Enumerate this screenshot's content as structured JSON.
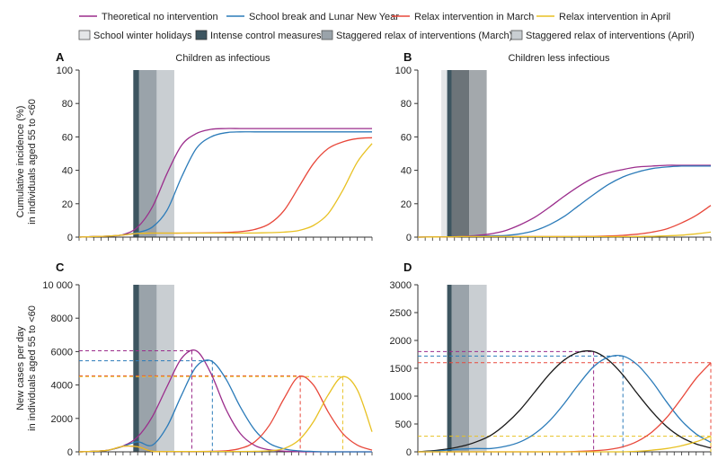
{
  "legend": {
    "lines": [
      {
        "label": "Theoretical no intervention",
        "color": "#9b2d8c"
      },
      {
        "label": "School break and Lunar New Year",
        "color": "#2b7bb9"
      },
      {
        "label": "Relax intervention in March",
        "color": "#e8483b"
      },
      {
        "label": "Relax intervention in April",
        "color": "#e8c123"
      }
    ],
    "boxes": [
      {
        "label": "School winter holidays",
        "color": "#e4e6e8"
      },
      {
        "label": "Intense control measures",
        "color": "#3d5560"
      },
      {
        "label": "Staggered relax of interventions (March)",
        "color": "#9aa3aa"
      },
      {
        "label": "Staggered relax of interventions (April)",
        "color": "#c9ced2"
      }
    ]
  },
  "ylabels": {
    "top": [
      "Cumulative incidence (%)",
      "in individuals aged 55 to <60"
    ],
    "bottom": [
      "New cases per day",
      "in individuals aged 55 to <60"
    ]
  },
  "chart_data": [
    {
      "panel": "A",
      "type": "line",
      "title": "Children as infectious",
      "ylim": [
        0,
        100
      ],
      "yticks": [
        0,
        20,
        40,
        60,
        80,
        100
      ],
      "x": [
        0,
        5,
        10,
        15,
        20,
        25,
        30,
        35,
        40,
        45,
        50,
        55,
        60,
        65,
        70,
        75,
        80,
        85,
        90,
        95,
        100
      ],
      "series": [
        {
          "name": "Theoretical no intervention",
          "color": "#9b2d8c",
          "values": [
            0,
            0.3,
            0.6,
            1.5,
            6,
            18,
            38,
            55,
            62,
            64.5,
            65,
            65,
            65,
            65,
            65,
            65,
            65,
            65,
            65,
            65,
            65
          ]
        },
        {
          "name": "School break and Lunar New Year",
          "color": "#2b7bb9",
          "values": [
            0,
            0.3,
            0.6,
            1.3,
            2.8,
            6,
            16,
            36,
            53,
            60,
            62.5,
            63,
            63,
            63,
            63,
            63,
            63,
            63,
            63,
            63,
            63
          ]
        },
        {
          "name": "Relax intervention in March",
          "color": "#e8483b",
          "values": [
            0,
            0.3,
            0.6,
            1.3,
            2.2,
            2.4,
            2.4,
            2.4,
            2.5,
            2.6,
            2.8,
            3.3,
            4.6,
            8,
            16,
            30,
            44,
            53,
            57,
            59,
            59.5
          ]
        },
        {
          "name": "Relax intervention in April",
          "color": "#e8c123",
          "values": [
            0,
            0.3,
            0.6,
            1.3,
            2.2,
            2.4,
            2.4,
            2.4,
            2.4,
            2.4,
            2.4,
            2.4,
            2.5,
            2.7,
            3,
            4,
            7,
            14,
            28,
            45,
            56
          ]
        }
      ]
    },
    {
      "panel": "B",
      "type": "line",
      "title": "Children less infectious",
      "ylim": [
        0,
        100
      ],
      "yticks": [
        0,
        20,
        40,
        60,
        80,
        100
      ],
      "x": [
        0,
        5,
        10,
        15,
        20,
        25,
        30,
        35,
        40,
        45,
        50,
        55,
        60,
        65,
        70,
        75,
        80,
        85,
        90,
        95,
        100
      ],
      "series": [
        {
          "name": "Theoretical no intervention",
          "color": "#9b2d8c",
          "values": [
            0,
            0.1,
            0.2,
            0.5,
            1,
            2,
            4,
            7.5,
            12,
            18,
            24.5,
            30.5,
            35.5,
            38.5,
            40.5,
            42,
            42.5,
            43,
            43,
            43,
            43
          ]
        },
        {
          "name": "School break and Lunar New Year",
          "color": "#2b7bb9",
          "values": [
            0,
            0.1,
            0.2,
            0.4,
            0.6,
            0.8,
            1,
            2,
            4,
            7.5,
            12.5,
            19,
            25.5,
            31.5,
            36,
            39,
            41,
            42,
            42.5,
            42.5,
            42.5
          ]
        },
        {
          "name": "Relax intervention in March",
          "color": "#e8483b",
          "values": [
            0,
            0.1,
            0.2,
            0.3,
            0.3,
            0.3,
            0.3,
            0.3,
            0.3,
            0.3,
            0.3,
            0.4,
            0.5,
            0.7,
            1.1,
            1.8,
            3,
            5,
            8.5,
            13,
            19
          ]
        },
        {
          "name": "Relax intervention in April",
          "color": "#e8c123",
          "values": [
            0,
            0.1,
            0.2,
            0.3,
            0.3,
            0.3,
            0.3,
            0.3,
            0.3,
            0.3,
            0.3,
            0.3,
            0.3,
            0.3,
            0.3,
            0.4,
            0.5,
            0.8,
            1.2,
            2,
            3
          ]
        }
      ]
    },
    {
      "panel": "C",
      "type": "line",
      "title": "",
      "ylim": [
        0,
        10000
      ],
      "yticks": [
        0,
        2000,
        4000,
        6000,
        8000,
        10000
      ],
      "x": [
        0,
        5,
        10,
        15,
        20,
        25,
        30,
        35,
        40,
        45,
        50,
        55,
        60,
        65,
        70,
        75,
        80,
        85,
        90,
        95,
        100
      ],
      "series": [
        {
          "name": "Theoretical no intervention",
          "color": "#9b2d8c",
          "values": [
            0,
            30,
            100,
            350,
            900,
            2100,
            3900,
            5600,
            6050,
            4700,
            2600,
            1100,
            380,
            120,
            40,
            10,
            0,
            0,
            0,
            0,
            0
          ]
        },
        {
          "name": "School break and Lunar New Year",
          "color": "#2b7bb9",
          "values": [
            0,
            30,
            100,
            330,
            600,
            400,
            1500,
            3400,
            5100,
            5450,
            4400,
            2700,
            1300,
            500,
            180,
            60,
            20,
            0,
            0,
            0,
            0
          ]
        },
        {
          "name": "Relax intervention in March",
          "color": "#e8483b",
          "values": [
            0,
            30,
            100,
            330,
            300,
            30,
            20,
            20,
            20,
            30,
            60,
            200,
            600,
            1600,
            3200,
            4500,
            4000,
            2400,
            1100,
            400,
            100
          ]
        },
        {
          "name": "Relax intervention in April",
          "color": "#e8c123",
          "values": [
            0,
            30,
            100,
            330,
            300,
            30,
            20,
            20,
            20,
            20,
            20,
            20,
            30,
            60,
            200,
            700,
            1800,
            3400,
            4500,
            3700,
            1200
          ]
        }
      ],
      "peaks": [
        {
          "x": 38.5,
          "y": 6050,
          "color": "#9b2d8c"
        },
        {
          "x": 45.5,
          "y": 5450,
          "color": "#2b7bb9"
        },
        {
          "x": 75.5,
          "y": 4550,
          "color": "#e8483b"
        },
        {
          "x": 90,
          "y": 4500,
          "color": "#e8c123"
        }
      ]
    },
    {
      "panel": "D",
      "type": "line",
      "title": "",
      "ylim": [
        0,
        3000
      ],
      "yticks": [
        0,
        500,
        1000,
        1500,
        2000,
        2500,
        3000
      ],
      "x": [
        0,
        5,
        10,
        15,
        20,
        25,
        30,
        35,
        40,
        45,
        50,
        55,
        60,
        65,
        70,
        75,
        80,
        85,
        90,
        95,
        100
      ],
      "series": [
        {
          "name": "Theoretical no intervention",
          "color": "#1a1a1a",
          "values": [
            0,
            20,
            50,
            100,
            180,
            300,
            500,
            760,
            1080,
            1400,
            1650,
            1790,
            1800,
            1650,
            1380,
            1040,
            720,
            450,
            260,
            140,
            70
          ]
        },
        {
          "name": "School break and Lunar New Year",
          "color": "#2b7bb9",
          "values": [
            0,
            10,
            30,
            50,
            60,
            60,
            100,
            180,
            330,
            560,
            870,
            1220,
            1530,
            1700,
            1720,
            1560,
            1260,
            890,
            560,
            320,
            170
          ]
        },
        {
          "name": "Relax intervention in March",
          "color": "#e8483b",
          "values": [
            0,
            0,
            0,
            0,
            0,
            0,
            0,
            0,
            0,
            0,
            0,
            10,
            20,
            40,
            90,
            190,
            360,
            620,
            960,
            1320,
            1600
          ]
        },
        {
          "name": "Relax intervention in April",
          "color": "#e8c123",
          "values": [
            0,
            0,
            0,
            0,
            0,
            0,
            0,
            0,
            0,
            0,
            0,
            0,
            0,
            0,
            0,
            10,
            30,
            60,
            110,
            180,
            280
          ]
        }
      ],
      "peaks": [
        {
          "x": 60,
          "y": 1800,
          "color": "#9b2d8c"
        },
        {
          "x": 70,
          "y": 1720,
          "color": "#2b7bb9"
        },
        {
          "x": 100,
          "y": 1600,
          "color": "#e8483b"
        },
        {
          "x": 100,
          "y": 280,
          "color": "#e8c123"
        }
      ]
    }
  ],
  "shading": [
    [
      {
        "start": 18.5,
        "end": 20.5,
        "color": "#3d5560"
      },
      {
        "start": 20.5,
        "end": 26.5,
        "color": "#9aa3aa"
      },
      {
        "start": 26.5,
        "end": 32.5,
        "color": "#c9ced2"
      }
    ],
    [
      {
        "start": 8,
        "end": 10,
        "color": "#e4e6e8"
      },
      {
        "start": 10,
        "end": 11.5,
        "color": "#3d5560"
      },
      {
        "start": 11.5,
        "end": 17.5,
        "color": "#6c7479"
      },
      {
        "start": 17.5,
        "end": 23.5,
        "color": "#a3a8ac"
      }
    ],
    [
      {
        "start": 18.5,
        "end": 20.5,
        "color": "#3d5560"
      },
      {
        "start": 20.5,
        "end": 26.5,
        "color": "#9aa3aa"
      },
      {
        "start": 26.5,
        "end": 32.5,
        "color": "#c9ced2"
      }
    ],
    [
      {
        "start": 10,
        "end": 11.5,
        "color": "#3d5560"
      },
      {
        "start": 11.5,
        "end": 17.5,
        "color": "#9aa3aa"
      },
      {
        "start": 17.5,
        "end": 23.5,
        "color": "#c9ced2"
      }
    ]
  ]
}
